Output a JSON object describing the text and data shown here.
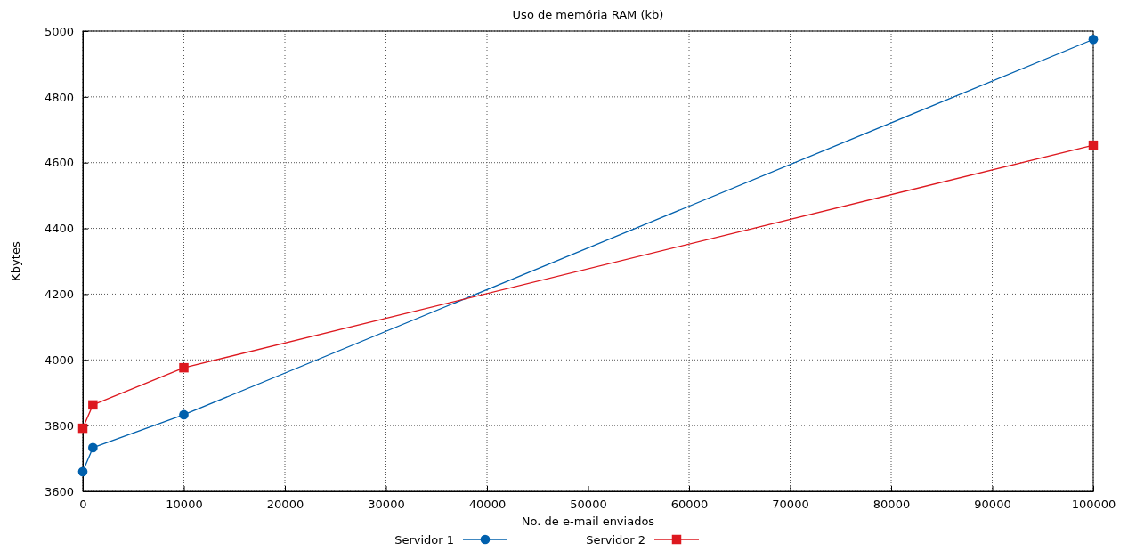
{
  "chart_data": {
    "type": "line",
    "title": "Uso de memória RAM (kb)",
    "xlabel": "No. de e-mail enviados",
    "ylabel": "Kbytes",
    "xlim": [
      0,
      100000
    ],
    "xticks": [
      0,
      10000,
      20000,
      30000,
      40000,
      50000,
      60000,
      70000,
      80000,
      90000,
      100000
    ],
    "ylim": [
      3600,
      5000
    ],
    "yticks": [
      3600,
      3800,
      4000,
      4200,
      4400,
      4600,
      4800,
      5000
    ],
    "grid": true,
    "legend": "bottom",
    "line_style": "solid",
    "x": [
      0,
      1000,
      10000,
      100000
    ],
    "series": [
      {
        "name": "Servidor 1",
        "color": "#0060ad",
        "marker": "circle",
        "values": [
          3660,
          3733,
          3833,
          4975
        ]
      },
      {
        "name": "Servidor 2",
        "color": "#dd181f",
        "marker": "square",
        "values": [
          3792,
          3863,
          3976,
          4653
        ]
      }
    ]
  }
}
